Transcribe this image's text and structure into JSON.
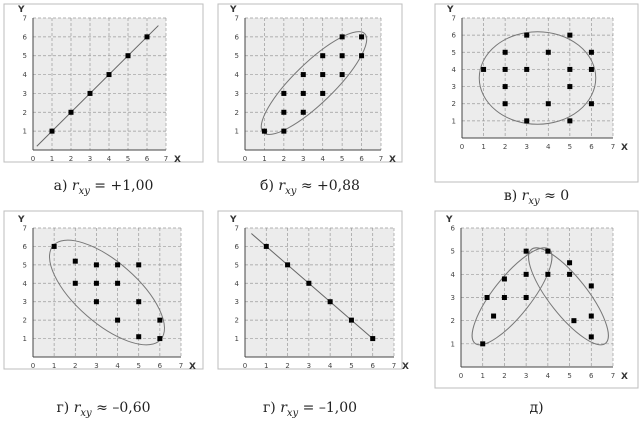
{
  "chart_data": [
    {
      "type": "scatter",
      "caption": {
        "prefix": "а) ",
        "var": "r",
        "sub": "xy",
        "rel": " = +1,00"
      },
      "xlabel": "X",
      "ylabel": "Y",
      "xlim": [
        0,
        7
      ],
      "ylim": [
        0,
        7
      ],
      "xticks": [
        0,
        1,
        2,
        3,
        4,
        5,
        6,
        7
      ],
      "yticks": [
        0,
        1,
        2,
        3,
        4,
        5,
        6,
        7
      ],
      "grid": true,
      "points": [
        [
          1,
          1
        ],
        [
          2,
          2
        ],
        [
          3,
          3
        ],
        [
          4,
          4
        ],
        [
          5,
          5
        ],
        [
          6,
          6
        ]
      ],
      "line": {
        "from": [
          0.2,
          0.2
        ],
        "to": [
          6.6,
          6.6
        ]
      },
      "ellipses": []
    },
    {
      "type": "scatter",
      "caption": {
        "prefix": "б) ",
        "var": "r",
        "sub": "xy",
        "rel": " ≈ +0,88"
      },
      "xlabel": "X",
      "ylabel": "Y",
      "xlim": [
        0,
        7
      ],
      "ylim": [
        0,
        7
      ],
      "xticks": [
        0,
        1,
        2,
        3,
        4,
        5,
        6,
        7
      ],
      "yticks": [
        0,
        1,
        2,
        3,
        4,
        5,
        6,
        7
      ],
      "grid": true,
      "points": [
        [
          1,
          1
        ],
        [
          2,
          1
        ],
        [
          2,
          2
        ],
        [
          2,
          3
        ],
        [
          3,
          2
        ],
        [
          3,
          3
        ],
        [
          3,
          4
        ],
        [
          4,
          3
        ],
        [
          4,
          4
        ],
        [
          4,
          5
        ],
        [
          5,
          4
        ],
        [
          5,
          5
        ],
        [
          5,
          6
        ],
        [
          6,
          5
        ],
        [
          6,
          6
        ]
      ],
      "ellipses": [
        {
          "cx": 3.55,
          "cy": 3.55,
          "rx": 3.7,
          "ry": 1.05,
          "angle": 45
        }
      ]
    },
    {
      "type": "scatter",
      "caption": {
        "prefix": "в) ",
        "var": "r",
        "sub": "xy",
        "rel": " ≈ 0"
      },
      "xlabel": "X",
      "ylabel": "Y",
      "xlim": [
        0,
        7
      ],
      "ylim": [
        0,
        7
      ],
      "xticks": [
        0,
        1,
        2,
        3,
        4,
        5,
        6,
        7
      ],
      "yticks": [
        0,
        1,
        2,
        3,
        4,
        5,
        6,
        7
      ],
      "grid": true,
      "points": [
        [
          1,
          4
        ],
        [
          2,
          2
        ],
        [
          2,
          3
        ],
        [
          2,
          4
        ],
        [
          2,
          5
        ],
        [
          3,
          1
        ],
        [
          3,
          4
        ],
        [
          3,
          6
        ],
        [
          4,
          2
        ],
        [
          4,
          5
        ],
        [
          5,
          1
        ],
        [
          5,
          3
        ],
        [
          5,
          4
        ],
        [
          5,
          6
        ],
        [
          6,
          2
        ],
        [
          6,
          4
        ],
        [
          6,
          5
        ]
      ],
      "ellipses": [
        {
          "cx": 3.5,
          "cy": 3.5,
          "rx": 2.7,
          "ry": 2.7,
          "angle": 0
        }
      ]
    },
    {
      "type": "scatter",
      "caption": {
        "prefix": "г) ",
        "var": "r",
        "sub": "xy",
        "rel": " ≈ –0,60"
      },
      "xlabel": "X",
      "ylabel": "Y",
      "xlim": [
        0,
        7
      ],
      "ylim": [
        0,
        7
      ],
      "xticks": [
        0,
        1,
        2,
        3,
        4,
        5,
        6,
        7
      ],
      "yticks": [
        0,
        1,
        2,
        3,
        4,
        5,
        6,
        7
      ],
      "grid": true,
      "points": [
        [
          1,
          6
        ],
        [
          2,
          4
        ],
        [
          2,
          5.2
        ],
        [
          3,
          3
        ],
        [
          3,
          4
        ],
        [
          3,
          5
        ],
        [
          4,
          2
        ],
        [
          4,
          4
        ],
        [
          4,
          5
        ],
        [
          5,
          1.1
        ],
        [
          5,
          3
        ],
        [
          5,
          5
        ],
        [
          6,
          1
        ],
        [
          6,
          2
        ]
      ],
      "ellipses": [
        {
          "cx": 3.5,
          "cy": 3.5,
          "rx": 3.6,
          "ry": 1.55,
          "angle": -45
        }
      ]
    },
    {
      "type": "scatter",
      "caption": {
        "prefix": "г) ",
        "var": "r",
        "sub": "xy",
        "rel": " = –1,00"
      },
      "xlabel": "X",
      "ylabel": "Y",
      "xlim": [
        0,
        7
      ],
      "ylim": [
        0,
        7
      ],
      "xticks": [
        0,
        1,
        2,
        3,
        4,
        5,
        6,
        7
      ],
      "yticks": [
        0,
        1,
        2,
        3,
        4,
        5,
        6,
        7
      ],
      "grid": true,
      "points": [
        [
          1,
          6
        ],
        [
          2,
          5
        ],
        [
          3,
          4
        ],
        [
          4,
          3
        ],
        [
          5,
          2
        ],
        [
          6,
          1
        ]
      ],
      "line": {
        "from": [
          0.3,
          6.7
        ],
        "to": [
          6.0,
          1.0
        ]
      },
      "ellipses": []
    },
    {
      "type": "scatter",
      "caption": {
        "prefix": "д)",
        "var": "",
        "sub": "",
        "rel": ""
      },
      "xlabel": "X",
      "ylabel": "Y",
      "xlim": [
        0,
        7
      ],
      "ylim": [
        0,
        6
      ],
      "xticks": [
        0,
        1,
        2,
        3,
        4,
        5,
        6,
        7
      ],
      "yticks": [
        0,
        1,
        2,
        3,
        4,
        5,
        6
      ],
      "grid": true,
      "points": [
        [
          1,
          1
        ],
        [
          1.2,
          3
        ],
        [
          1.5,
          2.2
        ],
        [
          2,
          3
        ],
        [
          2,
          3.8
        ],
        [
          3,
          3
        ],
        [
          3,
          4
        ],
        [
          3,
          5
        ],
        [
          4,
          4
        ],
        [
          4,
          5
        ],
        [
          5,
          4
        ],
        [
          5,
          4.5
        ],
        [
          5.2,
          2
        ],
        [
          6,
          1.3
        ],
        [
          6,
          2.2
        ],
        [
          6,
          3.5
        ]
      ],
      "ellipses": [
        {
          "cx": 2.35,
          "cy": 3.05,
          "rx": 2.65,
          "ry": 0.85,
          "angle": 50
        },
        {
          "cx": 4.95,
          "cy": 3.05,
          "rx": 2.65,
          "ry": 0.85,
          "angle": -50
        }
      ]
    }
  ]
}
